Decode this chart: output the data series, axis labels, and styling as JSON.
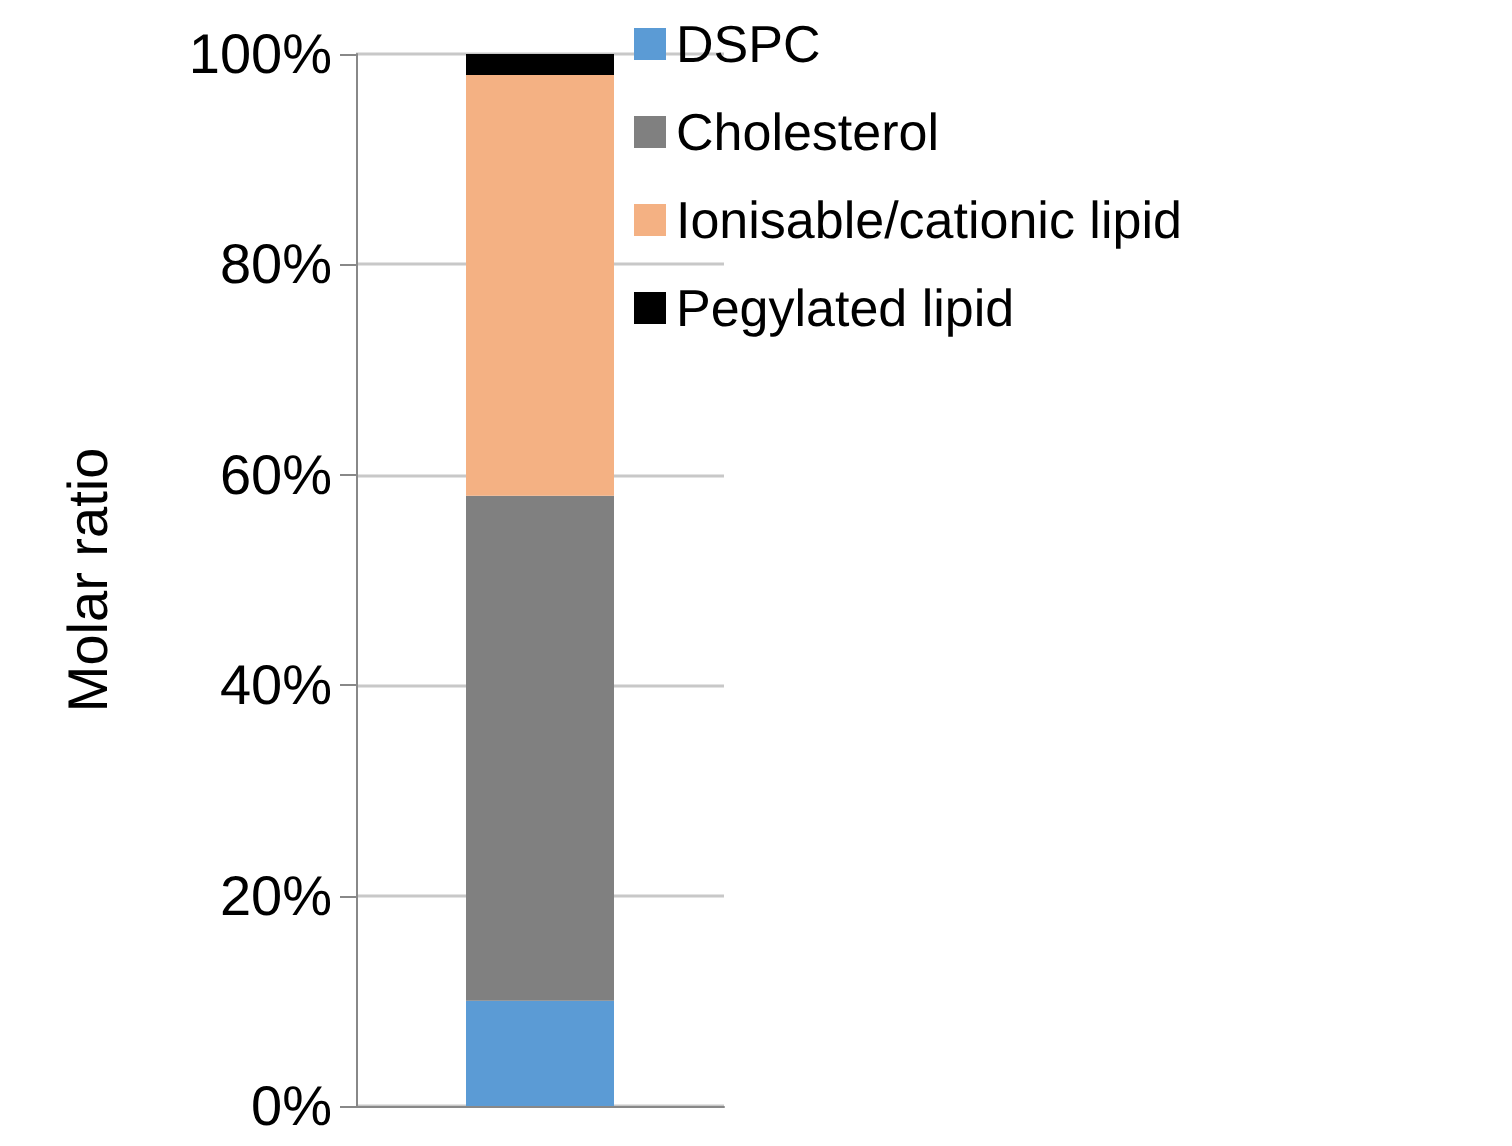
{
  "chart_data": {
    "type": "bar",
    "stacked": true,
    "ylabel": "Molar ratio",
    "categories": [
      null
    ],
    "series": [
      {
        "name": "DSPC",
        "color": "#5b9bd5",
        "values": [
          10
        ]
      },
      {
        "name": "Cholesterol",
        "color": "#808080",
        "values": [
          48
        ]
      },
      {
        "name": "Ionisable/cationic lipid",
        "color": "#f4b183",
        "values": [
          40
        ]
      },
      {
        "name": "Pegylated lipid",
        "color": "#000000",
        "values": [
          2
        ]
      }
    ],
    "ylim": [
      0,
      100
    ],
    "yticks": [
      {
        "value": 0,
        "label": "0%"
      },
      {
        "value": 20,
        "label": "20%"
      },
      {
        "value": 40,
        "label": "40%"
      },
      {
        "value": 60,
        "label": "60%"
      },
      {
        "value": 80,
        "label": "80%"
      },
      {
        "value": 100,
        "label": "100%"
      }
    ],
    "grid": "y",
    "legend": "top right"
  }
}
